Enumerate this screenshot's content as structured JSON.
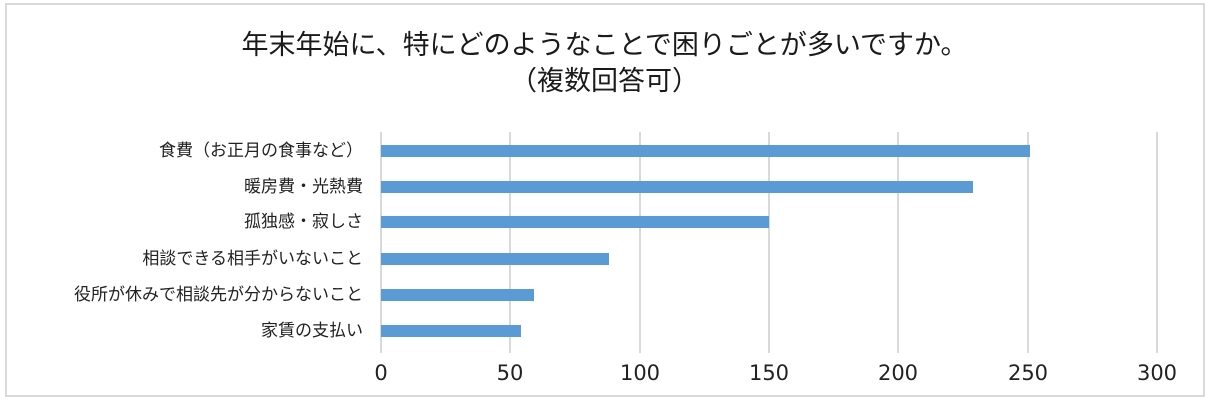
{
  "chart_data": {
    "type": "bar",
    "orientation": "horizontal",
    "title": "年末年始に、特にどのようなことで困りごとが多いですか。",
    "subtitle": "（複数回答可）",
    "categories": [
      "食費（お正月の食事など）",
      "暖房費・光熱費",
      "孤独感・寂しさ",
      "相談できる相手がいないこと",
      "役所が休みで相談先が分からないこと",
      "家賃の支払い"
    ],
    "values": [
      251,
      229,
      150,
      88,
      59,
      54
    ],
    "xlabel": "",
    "ylabel": "",
    "xlim": [
      0,
      300
    ],
    "xticks": [
      "0",
      "50",
      "100",
      "150",
      "200",
      "250",
      "300"
    ],
    "grid": "vertical",
    "legend": "none",
    "bar_color": "#5b9bd5"
  },
  "colors": {
    "bar": "#5b9bd5",
    "grid": "#d9d9d9",
    "border": "#d9d9d9"
  }
}
